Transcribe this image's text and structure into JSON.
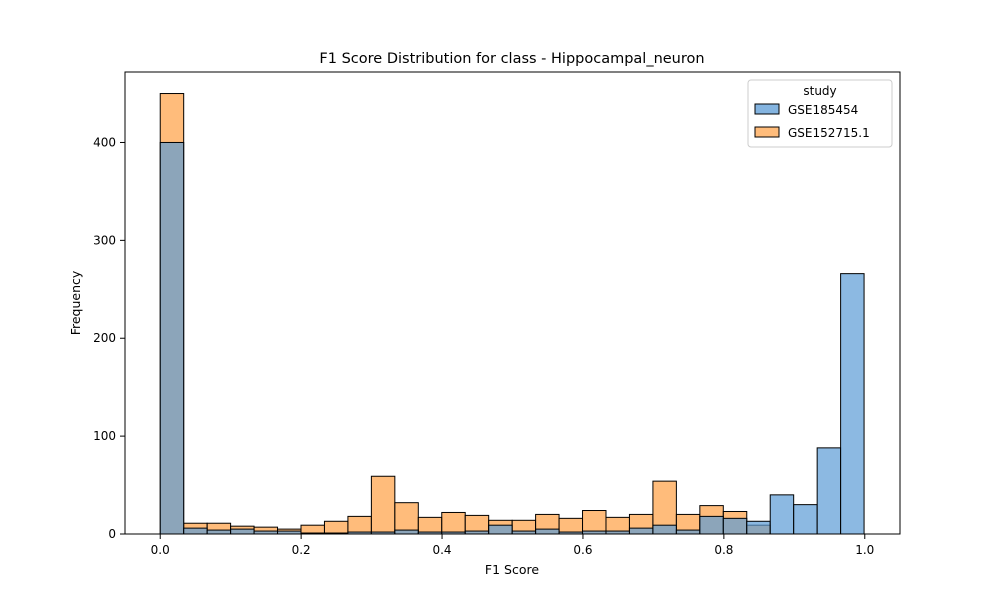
{
  "chart_data": {
    "type": "histogram",
    "title": "F1 Score Distribution for class - Hippocampal_neuron",
    "xlabel": "F1 Score",
    "ylabel": "Frequency",
    "xlim": [
      -0.05,
      1.05
    ],
    "ylim": [
      0,
      472
    ],
    "xticks": [
      0.0,
      0.2,
      0.4,
      0.6,
      0.8,
      1.0
    ],
    "xtick_labels": [
      "0.0",
      "0.2",
      "0.4",
      "0.6",
      "0.8",
      "1.0"
    ],
    "yticks": [
      0,
      100,
      200,
      300,
      400
    ],
    "ytick_labels": [
      "0",
      "100",
      "200",
      "300",
      "400"
    ],
    "bin_start": 0.0,
    "bin_width": 0.0333,
    "grid": false,
    "legend": {
      "title": "study",
      "placement": "top-right"
    },
    "series": [
      {
        "name": "GSE185454",
        "color": "#5b9bd5",
        "values": [
          400,
          6,
          4,
          5,
          3,
          3,
          1,
          1,
          2,
          2,
          4,
          2,
          2,
          3,
          9,
          3,
          5,
          2,
          3,
          3,
          6,
          9,
          4,
          18,
          16,
          13,
          40,
          30,
          88,
          266
        ]
      },
      {
        "name": "GSE152715.1",
        "color": "#ffa54f",
        "values": [
          450,
          11,
          11,
          8,
          7,
          5,
          9,
          13,
          18,
          59,
          32,
          17,
          22,
          19,
          14,
          14,
          20,
          16,
          24,
          17,
          20,
          54,
          20,
          29,
          23,
          9,
          0,
          0,
          0,
          0
        ]
      }
    ]
  }
}
